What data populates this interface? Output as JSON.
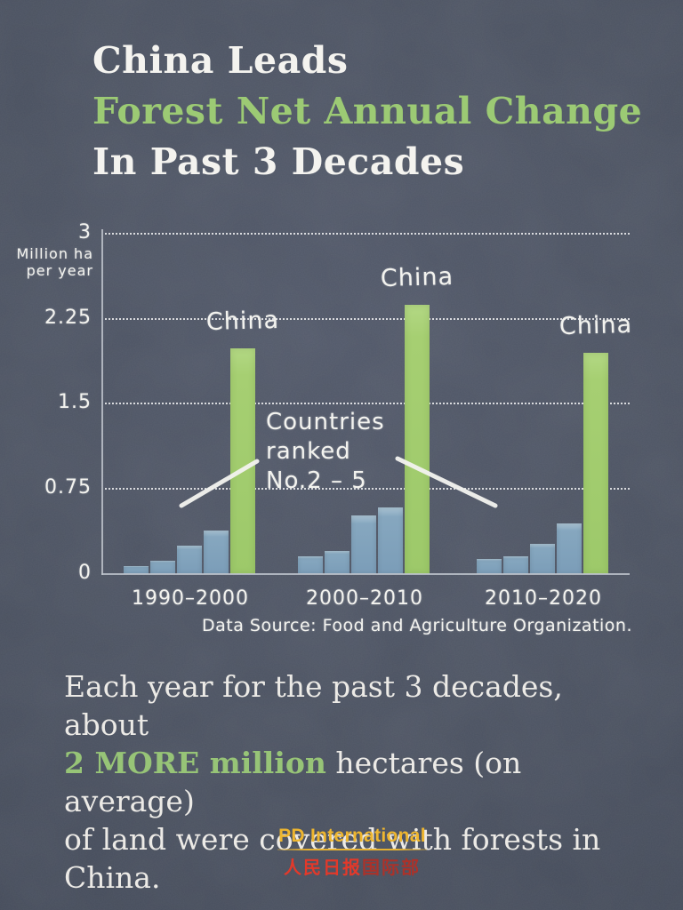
{
  "title": {
    "line1": "China Leads",
    "line2": "Forest Net Annual Change",
    "line3": "In Past 3 Decades"
  },
  "colors": {
    "background": "#454c5b",
    "accent_green_text": "#9cca74",
    "bar_green": "#a6cf72",
    "bar_blue": "#82a4bd",
    "chalk_white": "#f3f3ef",
    "logo_gold": "#eeb62f",
    "logo_red": "#e2392a",
    "logo_dark_red": "#ab322a"
  },
  "chart_data": {
    "type": "bar",
    "title": "China Leads Forest Net Annual Change In Past 3 Decades",
    "ylabel": "Million ha per year",
    "ylabel_line1": "Million ha",
    "ylabel_line2": "per year",
    "ylim": [
      0,
      3
    ],
    "y_ticks": [
      0,
      0.75,
      1.5,
      2.25,
      3
    ],
    "grid": "dotted horizontal gridlines",
    "legend_position": "none",
    "categories": [
      "1990–2000",
      "2000–2010",
      "2010–2020"
    ],
    "groups": [
      {
        "period": "1990–2000",
        "china_label": "China",
        "china": 1.99,
        "others_ranked_2_to_5": [
          0.07,
          0.12,
          0.25,
          0.38
        ]
      },
      {
        "period": "2000–2010",
        "china_label": "China",
        "china": 2.37,
        "others_ranked_2_to_5": [
          0.16,
          0.2,
          0.52,
          0.59
        ]
      },
      {
        "period": "2010–2020",
        "china_label": "China",
        "china": 1.95,
        "others_ranked_2_to_5": [
          0.13,
          0.16,
          0.27,
          0.45
        ]
      }
    ],
    "annotation": {
      "line1": "Countries",
      "line2": "ranked",
      "line3": "No.2 – 5"
    },
    "source": "Data Source: Food and Agriculture Organization."
  },
  "caption": {
    "line1": "Each year for the past 3 decades, about",
    "line2_highlight": "2 MORE million",
    "line2_rest": " hectares (on average)",
    "line3": "of land were covered with forests in",
    "line4": "China."
  },
  "logo": {
    "en": "PD International",
    "zh_part1": "人民日报",
    "zh_part2": "国际部"
  }
}
